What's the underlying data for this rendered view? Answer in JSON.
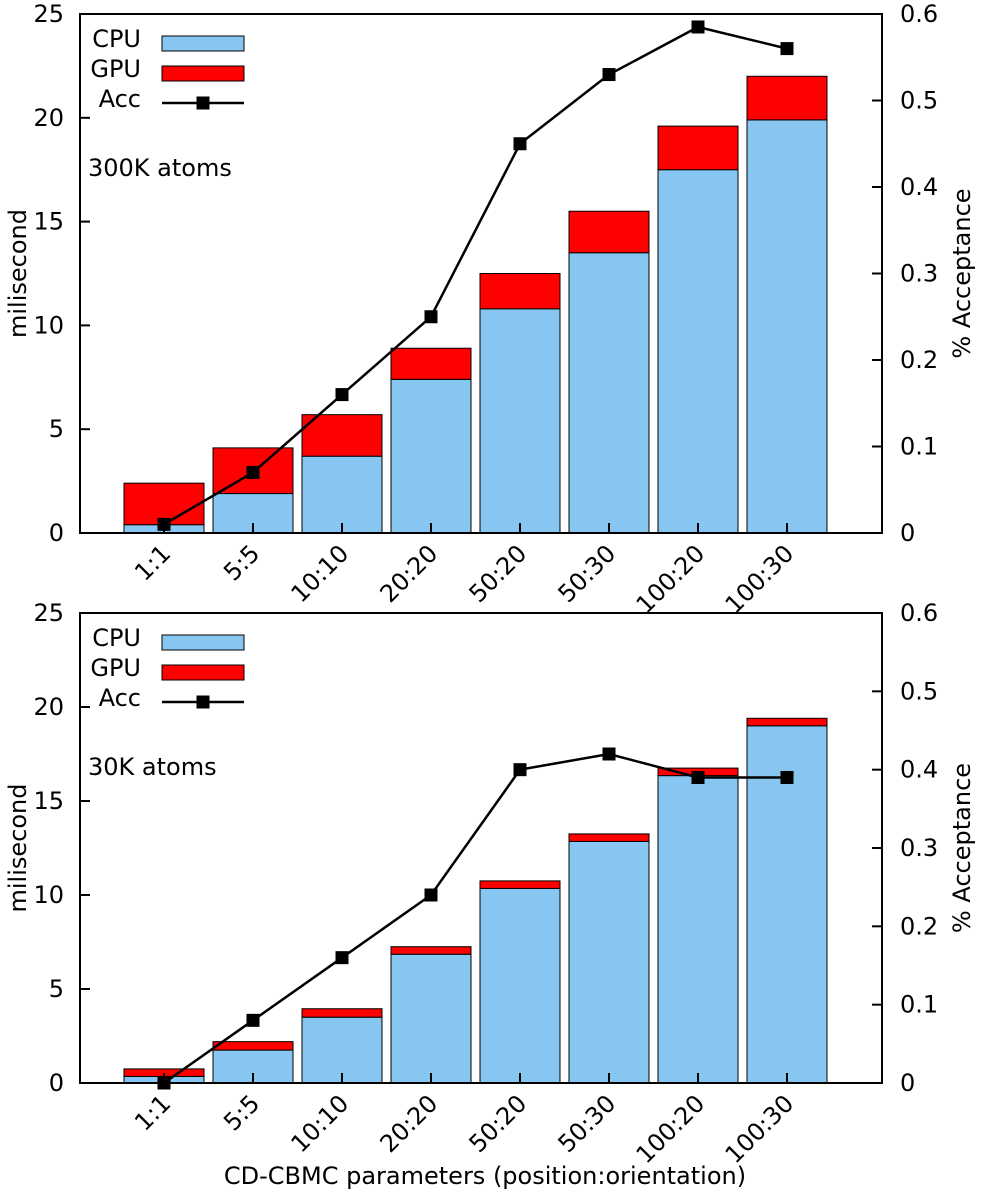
{
  "figure": {
    "xlabel": "CD-CBMC parameters (position:orientation)"
  },
  "chart_data": [
    {
      "type": "bar",
      "stacked": true,
      "annotation": "300K atoms",
      "categories": [
        "1:1",
        "5:5",
        "10:10",
        "20:20",
        "50:20",
        "50:30",
        "100:20",
        "100:30"
      ],
      "series": [
        {
          "name": "CPU",
          "color": "#87c6f0",
          "values": [
            0.4,
            1.9,
            3.7,
            7.4,
            10.8,
            13.5,
            17.5,
            19.9
          ]
        },
        {
          "name": "GPU",
          "color": "#ff0000",
          "values": [
            2.0,
            2.2,
            2.0,
            1.5,
            1.7,
            2.0,
            2.1,
            2.1
          ]
        }
      ],
      "line_series": {
        "name": "Acc",
        "axis": "right",
        "color": "#000000",
        "values": [
          0.01,
          0.07,
          0.16,
          0.25,
          0.45,
          0.53,
          0.585,
          0.56
        ]
      },
      "ylabel": "milisecond",
      "ylabel_right": "% Acceptance",
      "ylim": [
        0,
        25
      ],
      "yticks": [
        0,
        5,
        10,
        15,
        20,
        25
      ],
      "ylim_right": [
        0,
        0.6
      ],
      "yticks_right": [
        0,
        0.1,
        0.2,
        0.3,
        0.4,
        0.5,
        0.6
      ],
      "legend": "top-left",
      "grid": false
    },
    {
      "type": "bar",
      "stacked": true,
      "annotation": "30K atoms",
      "categories": [
        "1:1",
        "5:5",
        "10:10",
        "20:20",
        "50:20",
        "50:30",
        "100:20",
        "100:30"
      ],
      "series": [
        {
          "name": "CPU",
          "color": "#87c6f0",
          "values": [
            0.35,
            1.75,
            3.5,
            6.85,
            10.35,
            12.85,
            16.35,
            19.0
          ]
        },
        {
          "name": "GPU",
          "color": "#ff0000",
          "values": [
            0.4,
            0.45,
            0.45,
            0.4,
            0.4,
            0.4,
            0.4,
            0.4
          ]
        }
      ],
      "line_series": {
        "name": "Acc",
        "axis": "right",
        "color": "#000000",
        "values": [
          0.0,
          0.08,
          0.16,
          0.24,
          0.4,
          0.42,
          0.39,
          0.39
        ]
      },
      "ylabel": "milisecond",
      "ylabel_right": "% Acceptance",
      "ylim": [
        0,
        25
      ],
      "yticks": [
        0,
        5,
        10,
        15,
        20,
        25
      ],
      "ylim_right": [
        0,
        0.6
      ],
      "yticks_right": [
        0,
        0.1,
        0.2,
        0.3,
        0.4,
        0.5,
        0.6
      ],
      "legend": "top-left",
      "grid": false
    }
  ]
}
